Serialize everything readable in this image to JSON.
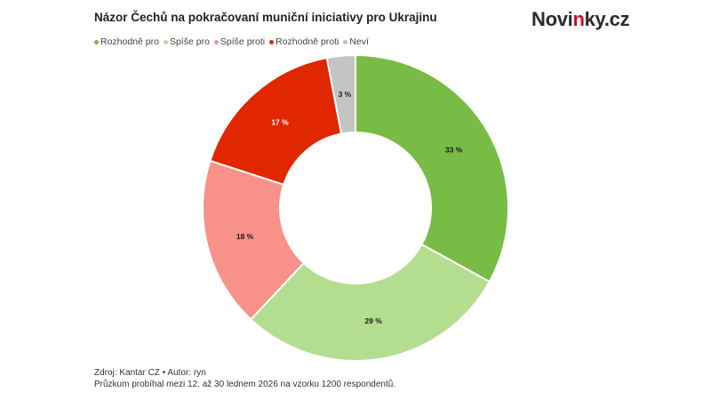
{
  "header": {
    "title": "Názor Čechů na pokračovaní muniční iniciativy pro Ukrajinu",
    "logo_main": "Novi",
    "logo_accent": "n",
    "logo_rest": "ky.cz"
  },
  "legend": [
    {
      "label": "Rozhodně pro",
      "color": "#78bb45"
    },
    {
      "label": "Spíše pro",
      "color": "#b3de8f"
    },
    {
      "label": "Spíše proti",
      "color": "#f8918a"
    },
    {
      "label": "Rozhodně proti",
      "color": "#e02700"
    },
    {
      "label": "Neví",
      "color": "#c4c4c4"
    }
  ],
  "footer": {
    "source": "Zdroj: Kantar CZ • Autor: ryn",
    "note": "Průzkum probíhal mezi 12. až 30 lednem 2026 na vzorku 1200 respondentů."
  },
  "chart_data": {
    "type": "pie",
    "subtype": "donut",
    "title": "Názor Čechů na pokračovaní muniční iniciativy pro Ukrajinu",
    "categories": [
      "Rozhodně pro",
      "Spíše pro",
      "Spíše proti",
      "Rozhodně proti",
      "Neví"
    ],
    "values": [
      33,
      29,
      18,
      17,
      3
    ],
    "labels": [
      "33 %",
      "29 %",
      "18 %",
      "17 %",
      "3 %"
    ],
    "colors": [
      "#78bb45",
      "#b3de8f",
      "#f8918a",
      "#e02700",
      "#c4c4c4"
    ],
    "label_colors": [
      "#1a1a1a",
      "#1a1a1a",
      "#1a1a1a",
      "#ffffff",
      "#1a1a1a"
    ],
    "legend_position": "top-left",
    "start_angle": "12 o'clock, clockwise"
  }
}
